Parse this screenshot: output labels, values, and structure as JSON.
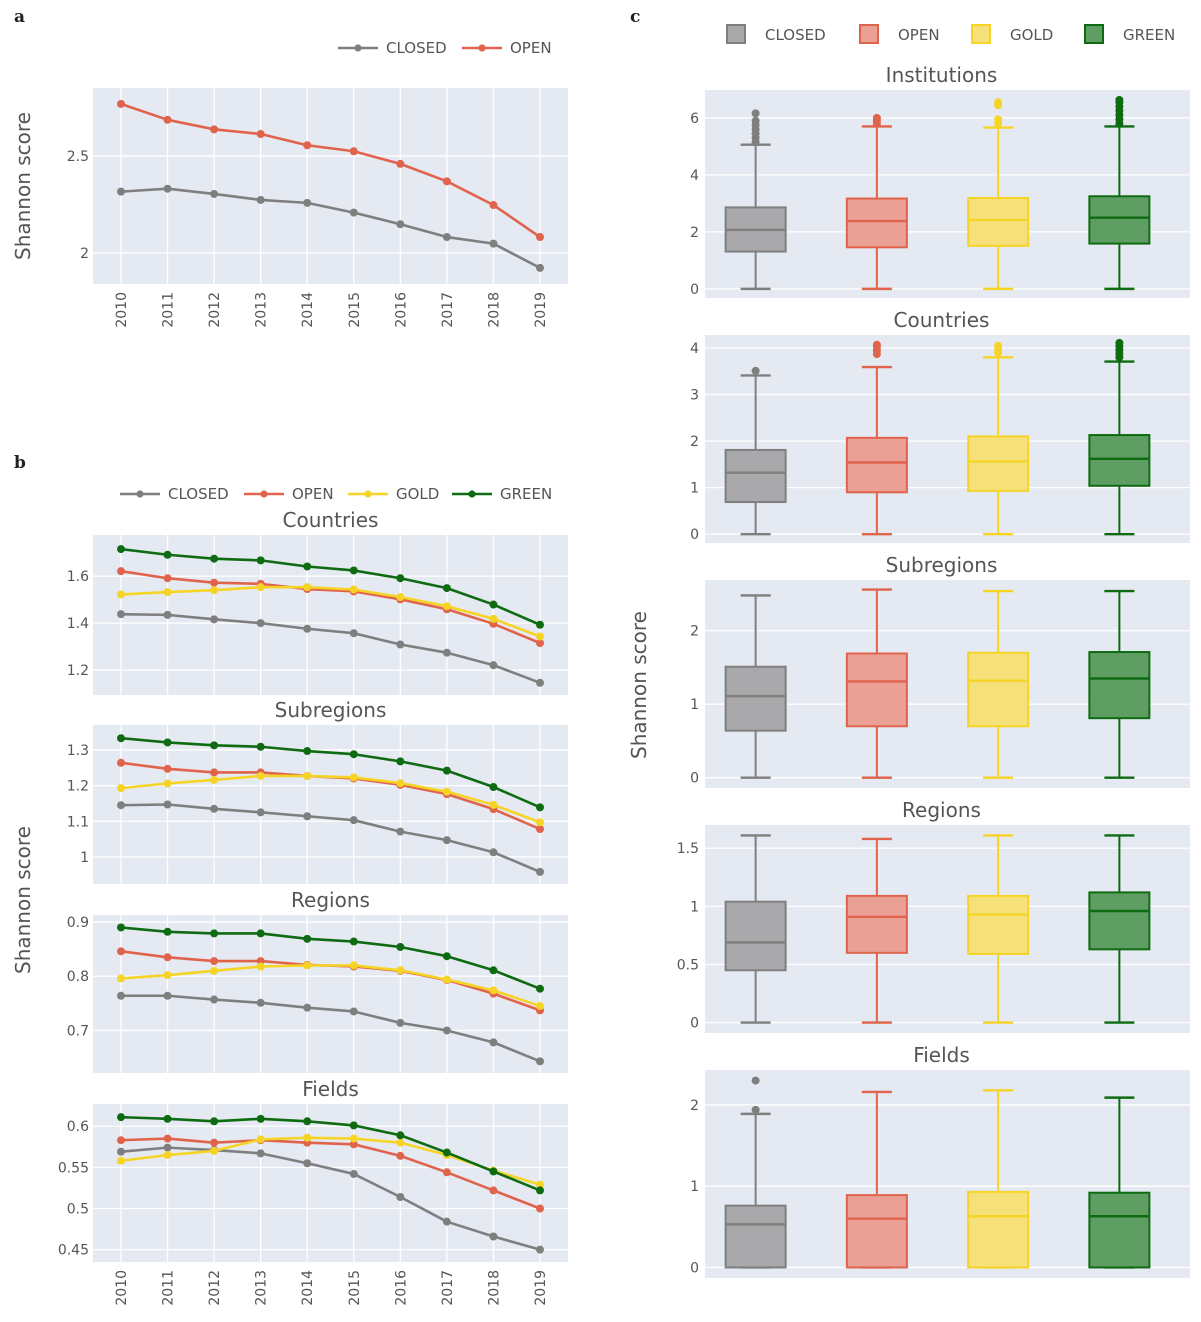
{
  "figure": {
    "panel_labels": [
      "a",
      "b",
      "c"
    ],
    "colors": {
      "CLOSED": "#7f7f7f",
      "OPEN": "#e0634c",
      "GOLD": "#f6d426",
      "GREEN": "#0f6b12"
    },
    "box_fill": {
      "CLOSED": "#a9a9ab",
      "OPEN": "#eba095",
      "GOLD": "#f5e07a",
      "GREEN": "#5e9e62"
    },
    "plot_bg": "#e5e9f2"
  },
  "chart_data": [
    {
      "id": "a",
      "type": "line",
      "title": "",
      "xlabel": "",
      "ylabel": "Shannon score",
      "x": [
        "2010",
        "2011",
        "2012",
        "2013",
        "2014",
        "2015",
        "2016",
        "2017",
        "2018",
        "2019"
      ],
      "yticks": [
        "2",
        "2.5"
      ],
      "ytick_values": [
        2,
        2.5
      ],
      "ylim": [
        1.84,
        2.85
      ],
      "grid": true,
      "legend": {
        "position": "top-right",
        "entries": [
          "CLOSED",
          "OPEN"
        ]
      },
      "series": [
        {
          "name": "CLOSED",
          "values": [
            2.316,
            2.331,
            2.304,
            2.273,
            2.258,
            2.208,
            2.148,
            2.082,
            2.048,
            1.923
          ]
        },
        {
          "name": "OPEN",
          "values": [
            2.768,
            2.686,
            2.637,
            2.613,
            2.555,
            2.524,
            2.459,
            2.369,
            2.247,
            2.082
          ]
        }
      ]
    },
    {
      "id": "b",
      "type": "line",
      "ylabel": "Shannon score",
      "x": [
        "2010",
        "2011",
        "2012",
        "2013",
        "2014",
        "2015",
        "2016",
        "2017",
        "2018",
        "2019"
      ],
      "legend": {
        "position": "top-right",
        "entries": [
          "CLOSED",
          "OPEN",
          "GOLD",
          "GREEN"
        ]
      },
      "grid": true,
      "subplots": [
        {
          "title": "Countries",
          "ylim": [
            1.094,
            1.775
          ],
          "yticks": [
            "1.2",
            "1.4",
            "1.6"
          ],
          "ytick_values": [
            1.2,
            1.4,
            1.6
          ],
          "series": [
            {
              "name": "CLOSED",
              "values": [
                1.438,
                1.435,
                1.416,
                1.4,
                1.376,
                1.357,
                1.309,
                1.274,
                1.221,
                1.146
              ]
            },
            {
              "name": "OPEN",
              "values": [
                1.621,
                1.591,
                1.572,
                1.567,
                1.545,
                1.535,
                1.501,
                1.459,
                1.397,
                1.315
              ]
            },
            {
              "name": "GOLD",
              "values": [
                1.522,
                1.532,
                1.54,
                1.553,
                1.553,
                1.543,
                1.511,
                1.472,
                1.418,
                1.343
              ]
            },
            {
              "name": "GREEN",
              "values": [
                1.715,
                1.691,
                1.674,
                1.667,
                1.641,
                1.624,
                1.591,
                1.549,
                1.479,
                1.393
              ]
            }
          ]
        },
        {
          "title": "Subregions",
          "ylim": [
            0.924,
            1.37
          ],
          "yticks": [
            "1",
            "1.1",
            "1.2",
            "1.3"
          ],
          "ytick_values": [
            1.0,
            1.1,
            1.2,
            1.3
          ],
          "series": [
            {
              "name": "CLOSED",
              "values": [
                1.145,
                1.147,
                1.135,
                1.125,
                1.114,
                1.103,
                1.071,
                1.047,
                1.013,
                0.958
              ]
            },
            {
              "name": "OPEN",
              "values": [
                1.264,
                1.247,
                1.237,
                1.237,
                1.227,
                1.22,
                1.202,
                1.176,
                1.134,
                1.078
              ]
            },
            {
              "name": "GOLD",
              "values": [
                1.193,
                1.206,
                1.216,
                1.227,
                1.227,
                1.223,
                1.207,
                1.183,
                1.146,
                1.097
              ]
            },
            {
              "name": "GREEN",
              "values": [
                1.333,
                1.321,
                1.313,
                1.309,
                1.297,
                1.288,
                1.268,
                1.242,
                1.196,
                1.139
              ]
            }
          ]
        },
        {
          "title": "Regions",
          "ylim": [
            0.6215,
            0.913
          ],
          "yticks": [
            "0.7",
            "0.8",
            "0.9"
          ],
          "ytick_values": [
            0.7,
            0.8,
            0.9
          ],
          "series": [
            {
              "name": "CLOSED",
              "values": [
                0.764,
                0.764,
                0.757,
                0.751,
                0.742,
                0.735,
                0.714,
                0.7,
                0.678,
                0.643
              ]
            },
            {
              "name": "OPEN",
              "values": [
                0.846,
                0.835,
                0.828,
                0.828,
                0.821,
                0.818,
                0.81,
                0.793,
                0.768,
                0.737
              ]
            },
            {
              "name": "GOLD",
              "values": [
                0.796,
                0.802,
                0.81,
                0.818,
                0.82,
                0.82,
                0.811,
                0.794,
                0.774,
                0.745
              ]
            },
            {
              "name": "GREEN",
              "values": [
                0.89,
                0.882,
                0.879,
                0.879,
                0.869,
                0.864,
                0.854,
                0.837,
                0.811,
                0.777
              ]
            }
          ]
        },
        {
          "title": "Fields",
          "ylim": [
            0.435,
            0.627
          ],
          "yticks": [
            "0.45",
            "0.5",
            "0.55",
            "0.6"
          ],
          "ytick_values": [
            0.45,
            0.5,
            0.55,
            0.6
          ],
          "series": [
            {
              "name": "CLOSED",
              "values": [
                0.569,
                0.574,
                0.571,
                0.567,
                0.555,
                0.542,
                0.514,
                0.484,
                0.466,
                0.45
              ]
            },
            {
              "name": "OPEN",
              "values": [
                0.583,
                0.585,
                0.58,
                0.583,
                0.58,
                0.578,
                0.564,
                0.544,
                0.522,
                0.5
              ]
            },
            {
              "name": "GOLD",
              "values": [
                0.558,
                0.565,
                0.57,
                0.584,
                0.586,
                0.585,
                0.58,
                0.565,
                0.546,
                0.529
              ]
            },
            {
              "name": "GREEN",
              "values": [
                0.611,
                0.609,
                0.606,
                0.609,
                0.606,
                0.601,
                0.589,
                0.568,
                0.545,
                0.522
              ]
            }
          ]
        }
      ]
    },
    {
      "id": "c",
      "type": "box",
      "ylabel": "Shannon score",
      "categories": [
        "CLOSED",
        "OPEN",
        "GOLD",
        "GREEN"
      ],
      "legend": {
        "position": "top",
        "entries": [
          "CLOSED",
          "OPEN",
          "GOLD",
          "GREEN"
        ]
      },
      "grid": true,
      "subplots": [
        {
          "title": "Institutions",
          "ylim": [
            -0.32,
            6.98
          ],
          "yticks": [
            "0",
            "2",
            "4",
            "6"
          ],
          "ytick_values": [
            0,
            2,
            4,
            6
          ],
          "boxes": [
            {
              "name": "CLOSED",
              "min": 0,
              "q1": 1.31,
              "median": 2.07,
              "q3": 2.86,
              "max": 5.06,
              "outliers": [
                5.15,
                5.3,
                5.45,
                5.6,
                5.75,
                5.9,
                6.16
              ]
            },
            {
              "name": "OPEN",
              "min": 0,
              "q1": 1.46,
              "median": 2.38,
              "q3": 3.17,
              "max": 5.7,
              "outliers": [
                5.8,
                5.9,
                6.0
              ]
            },
            {
              "name": "GOLD",
              "min": 0,
              "q1": 1.51,
              "median": 2.42,
              "q3": 3.19,
              "max": 5.66,
              "outliers": [
                5.8,
                5.95,
                6.45,
                6.55
              ]
            },
            {
              "name": "GREEN",
              "min": 0,
              "q1": 1.59,
              "median": 2.5,
              "q3": 3.25,
              "max": 5.7,
              "outliers": [
                5.8,
                5.95,
                6.1,
                6.25,
                6.4,
                6.55,
                6.63
              ]
            }
          ]
        },
        {
          "title": "Countries",
          "ylim": [
            -0.19,
            4.28
          ],
          "yticks": [
            "0",
            "1",
            "2",
            "3",
            "4"
          ],
          "ytick_values": [
            0,
            1,
            2,
            3,
            4
          ],
          "boxes": [
            {
              "name": "CLOSED",
              "min": 0,
              "q1": 0.69,
              "median": 1.32,
              "q3": 1.81,
              "max": 3.41,
              "outliers": [
                3.51
              ]
            },
            {
              "name": "OPEN",
              "min": 0,
              "q1": 0.9,
              "median": 1.54,
              "q3": 2.07,
              "max": 3.59,
              "outliers": [
                3.87,
                3.95,
                4.03,
                4.07
              ]
            },
            {
              "name": "GOLD",
              "min": 0,
              "q1": 0.93,
              "median": 1.56,
              "q3": 2.1,
              "max": 3.8,
              "outliers": [
                3.9,
                3.98,
                4.05
              ]
            },
            {
              "name": "GREEN",
              "min": 0,
              "q1": 1.04,
              "median": 1.62,
              "q3": 2.13,
              "max": 3.71,
              "outliers": [
                3.8,
                3.88,
                3.96,
                4.04,
                4.11
              ]
            }
          ]
        },
        {
          "title": "Subregions",
          "ylim": [
            -0.14,
            2.69
          ],
          "yticks": [
            "0",
            "1",
            "2"
          ],
          "ytick_values": [
            0,
            1,
            2
          ],
          "boxes": [
            {
              "name": "CLOSED",
              "min": 0,
              "q1": 0.64,
              "median": 1.11,
              "q3": 1.51,
              "max": 2.48,
              "outliers": []
            },
            {
              "name": "OPEN",
              "min": 0,
              "q1": 0.7,
              "median": 1.31,
              "q3": 1.69,
              "max": 2.56,
              "outliers": []
            },
            {
              "name": "GOLD",
              "min": 0,
              "q1": 0.7,
              "median": 1.32,
              "q3": 1.7,
              "max": 2.54,
              "outliers": []
            },
            {
              "name": "GREEN",
              "min": 0,
              "q1": 0.81,
              "median": 1.35,
              "q3": 1.71,
              "max": 2.54,
              "outliers": []
            }
          ]
        },
        {
          "title": "Regions",
          "ylim": [
            -0.09,
            1.7
          ],
          "yticks": [
            "0",
            "0.5",
            "1",
            "1.5"
          ],
          "ytick_values": [
            0,
            0.5,
            1,
            1.5
          ],
          "boxes": [
            {
              "name": "CLOSED",
              "min": 0,
              "q1": 0.45,
              "median": 0.69,
              "q3": 1.04,
              "max": 1.61,
              "outliers": []
            },
            {
              "name": "OPEN",
              "min": 0,
              "q1": 0.6,
              "median": 0.91,
              "q3": 1.09,
              "max": 1.58,
              "outliers": []
            },
            {
              "name": "GOLD",
              "min": 0,
              "q1": 0.59,
              "median": 0.93,
              "q3": 1.09,
              "max": 1.61,
              "outliers": []
            },
            {
              "name": "GREEN",
              "min": 0,
              "q1": 0.63,
              "median": 0.96,
              "q3": 1.12,
              "max": 1.61,
              "outliers": []
            }
          ]
        },
        {
          "title": "Fields",
          "ylim": [
            -0.13,
            2.43
          ],
          "yticks": [
            "0",
            "1",
            "2"
          ],
          "ytick_values": [
            0,
            1,
            2
          ],
          "boxes": [
            {
              "name": "CLOSED",
              "min": 0,
              "q1": 0,
              "median": 0.53,
              "q3": 0.76,
              "max": 1.89,
              "outliers": [
                1.94,
                2.3
              ]
            },
            {
              "name": "OPEN",
              "min": 0,
              "q1": 0,
              "median": 0.6,
              "q3": 0.89,
              "max": 2.16,
              "outliers": []
            },
            {
              "name": "GOLD",
              "min": 0,
              "q1": 0,
              "median": 0.63,
              "q3": 0.93,
              "max": 2.18,
              "outliers": []
            },
            {
              "name": "GREEN",
              "min": 0,
              "q1": 0,
              "median": 0.63,
              "q3": 0.92,
              "max": 2.09,
              "outliers": []
            }
          ]
        }
      ]
    }
  ]
}
